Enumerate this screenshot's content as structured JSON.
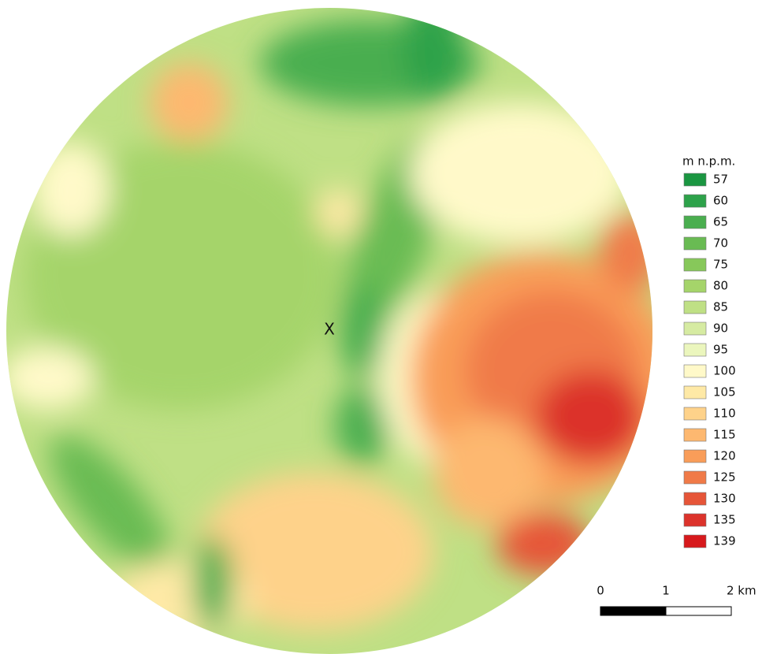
{
  "map": {
    "marker_label": "X",
    "legend": {
      "title": "m n.p.m.",
      "items": [
        {
          "value": 57,
          "color": "#1a9641"
        },
        {
          "value": 60,
          "color": "#2da24a"
        },
        {
          "value": 65,
          "color": "#4aae4f"
        },
        {
          "value": 70,
          "color": "#69bb53"
        },
        {
          "value": 75,
          "color": "#87c85a"
        },
        {
          "value": 80,
          "color": "#a5d46a"
        },
        {
          "value": 85,
          "color": "#bfe085"
        },
        {
          "value": 90,
          "color": "#d6eba2"
        },
        {
          "value": 95,
          "color": "#ebf6bd"
        },
        {
          "value": 100,
          "color": "#fff9c9"
        },
        {
          "value": 105,
          "color": "#fee9a6"
        },
        {
          "value": 110,
          "color": "#fed28a"
        },
        {
          "value": 115,
          "color": "#fdb870"
        },
        {
          "value": 120,
          "color": "#f99d59"
        },
        {
          "value": 125,
          "color": "#f07a48"
        },
        {
          "value": 130,
          "color": "#e65538"
        },
        {
          "value": 135,
          "color": "#dc332b"
        },
        {
          "value": 139,
          "color": "#d7191c"
        }
      ]
    },
    "scale_bar": {
      "labels": [
        "0",
        "1",
        "2 km"
      ]
    }
  }
}
